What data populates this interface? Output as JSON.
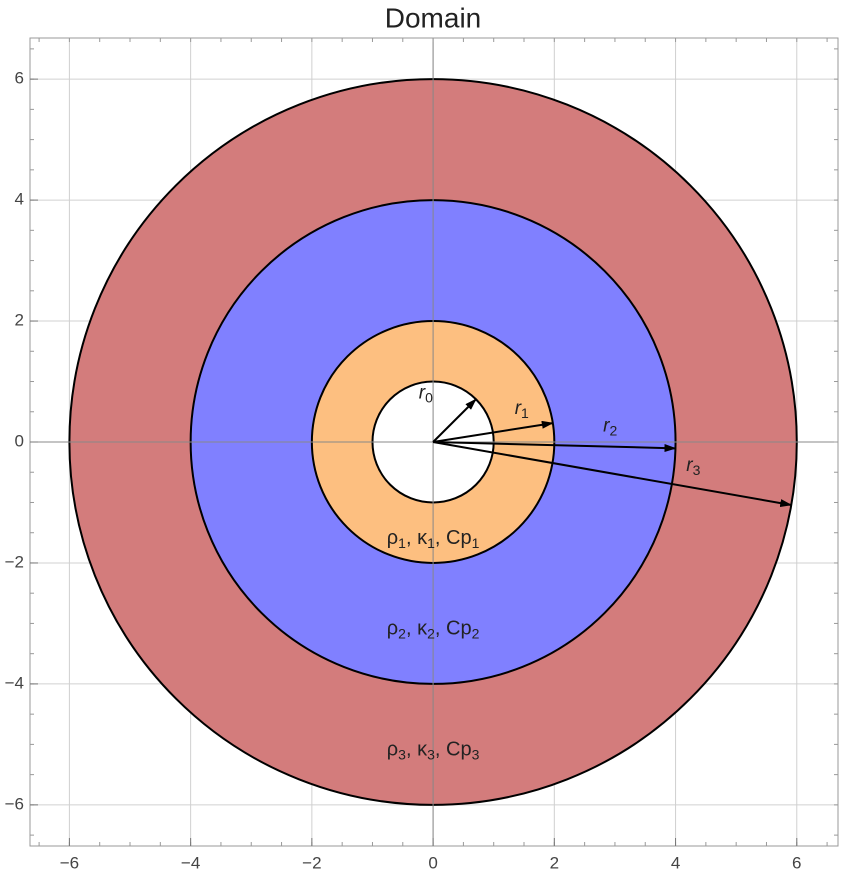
{
  "chart_data": {
    "type": "rings",
    "title": "Domain",
    "xlim": [
      -6.65,
      6.68
    ],
    "ylim": [
      -6.68,
      6.68
    ],
    "xticks": [
      {
        "value": -6,
        "label": "−6"
      },
      {
        "value": -4,
        "label": "−4"
      },
      {
        "value": -2,
        "label": "−2"
      },
      0,
      2,
      4,
      6
    ],
    "yticks": [
      {
        "value": -6,
        "label": "−6"
      },
      {
        "value": -4,
        "label": "−4"
      },
      {
        "value": -2,
        "label": "−2"
      },
      0,
      2,
      4,
      6
    ],
    "grid": true,
    "radii": [
      {
        "name": "r",
        "subscript": "0",
        "value": 1
      },
      {
        "name": "r",
        "subscript": "1",
        "value": 2
      },
      {
        "name": "r",
        "subscript": "2",
        "value": 4
      },
      {
        "name": "r",
        "subscript": "3",
        "value": 6
      }
    ],
    "regions": [
      {
        "color": "#ffffff"
      },
      {
        "color": "#fdbf80",
        "parts": [
          "ρ",
          ", κ",
          ", Cp"
        ],
        "subs": [
          "1",
          "1",
          "1"
        ]
      },
      {
        "color": "#8080ff",
        "parts": [
          "ρ",
          ", κ",
          ", Cp"
        ],
        "subs": [
          "2",
          "2",
          "2"
        ]
      },
      {
        "color": "#d37c7c",
        "parts": [
          "ρ",
          ", κ",
          ", Cp"
        ],
        "subs": [
          "3",
          "3",
          "3"
        ]
      }
    ]
  }
}
